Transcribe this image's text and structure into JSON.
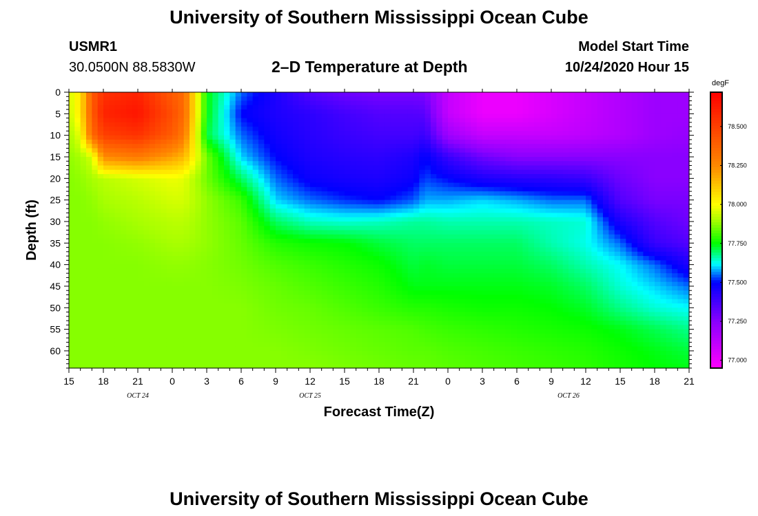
{
  "page": {
    "title_top": "University of Southern Mississippi Ocean Cube",
    "title_bottom": "University of Southern Mississippi Ocean Cube",
    "station_id": "USMR1",
    "station_coords": "30.0500N 88.5830W",
    "plot_title": "2–D Temperature at Depth",
    "model_start_label": "Model Start Time",
    "model_start_value": "10/24/2020 Hour 15"
  },
  "chart_data": {
    "type": "heatmap",
    "title": "2–D Temperature at Depth",
    "xlabel": "Forecast Time(Z)",
    "ylabel": "Depth (ft)",
    "x_tick_labels": [
      "15",
      "18",
      "21",
      "0",
      "3",
      "6",
      "9",
      "12",
      "15",
      "18",
      "21",
      "0",
      "3",
      "6",
      "9",
      "12",
      "15",
      "18",
      "21"
    ],
    "x_hours_since_start": [
      0,
      3,
      6,
      9,
      12,
      15,
      18,
      21,
      24,
      27,
      30,
      33,
      36,
      39,
      42,
      45,
      48,
      51,
      54
    ],
    "x_range_hours": [
      0,
      54
    ],
    "date_labels": [
      {
        "label": "OCT 24",
        "hour": 6
      },
      {
        "label": "OCT 25",
        "hour": 21
      },
      {
        "label": "OCT 26",
        "hour": 43.5
      }
    ],
    "y_ticks": [
      0,
      5,
      10,
      15,
      20,
      25,
      30,
      35,
      40,
      45,
      50,
      55,
      60
    ],
    "y_range": [
      0,
      64
    ],
    "y_inverted": true,
    "colorbar": {
      "unit": "degF",
      "range": [
        76.95,
        78.72
      ],
      "ticks": [
        77.0,
        77.25,
        77.5,
        77.75,
        78.0,
        78.25,
        78.5
      ],
      "tick_labels": [
        "77.000",
        "77.250",
        "77.500",
        "77.750",
        "78.000",
        "78.250",
        "78.500"
      ],
      "colors": [
        {
          "v": 76.95,
          "c": "#ff00ff"
        },
        {
          "v": 77.25,
          "c": "#8a00ff"
        },
        {
          "v": 77.5,
          "c": "#0000ff"
        },
        {
          "v": 77.62,
          "c": "#00ffff"
        },
        {
          "v": 77.75,
          "c": "#00ff00"
        },
        {
          "v": 77.9,
          "c": "#a8ff00"
        },
        {
          "v": 78.0,
          "c": "#ffff00"
        },
        {
          "v": 78.25,
          "c": "#ff8800"
        },
        {
          "v": 78.72,
          "c": "#ff0000"
        }
      ]
    },
    "grid_hours": [
      0,
      1,
      2,
      3,
      6,
      9,
      10,
      12,
      15,
      18,
      21,
      24,
      27,
      30,
      31,
      33,
      36,
      39,
      42,
      45,
      48,
      51,
      54
    ],
    "grid_depths": [
      0,
      5,
      10,
      15,
      20,
      25,
      30,
      35,
      40,
      45,
      50,
      55,
      60,
      64
    ],
    "grid_values": [
      [
        77.95,
        78.05,
        78.4,
        78.55,
        78.6,
        78.4,
        78.35,
        77.75,
        77.55,
        77.45,
        77.35,
        77.3,
        77.28,
        77.28,
        77.27,
        77.1,
        77.0,
        77.0,
        77.05,
        77.1,
        77.15,
        77.2,
        77.2
      ],
      [
        77.93,
        78.05,
        78.4,
        78.6,
        78.65,
        78.45,
        78.35,
        77.75,
        77.5,
        77.45,
        77.42,
        77.38,
        77.35,
        77.35,
        77.34,
        77.1,
        77.0,
        77.0,
        77.05,
        77.1,
        77.15,
        77.2,
        77.2
      ],
      [
        77.9,
        77.98,
        78.35,
        78.5,
        78.55,
        78.4,
        78.3,
        77.72,
        77.55,
        77.47,
        77.43,
        77.4,
        77.38,
        77.38,
        77.4,
        77.2,
        77.1,
        77.1,
        77.1,
        77.12,
        77.15,
        77.2,
        77.22
      ],
      [
        77.88,
        77.9,
        77.95,
        78.25,
        78.3,
        78.2,
        78.15,
        77.85,
        77.6,
        77.5,
        77.45,
        77.43,
        77.42,
        77.45,
        77.5,
        77.4,
        77.3,
        77.25,
        77.25,
        77.25,
        77.25,
        77.25,
        77.25
      ],
      [
        77.87,
        77.88,
        77.9,
        77.92,
        77.95,
        77.98,
        77.97,
        77.85,
        77.7,
        77.55,
        77.48,
        77.46,
        77.45,
        77.48,
        77.53,
        77.5,
        77.45,
        77.43,
        77.42,
        77.4,
        77.3,
        77.25,
        77.25
      ],
      [
        77.87,
        77.87,
        77.88,
        77.9,
        77.92,
        77.95,
        77.95,
        77.88,
        77.8,
        77.6,
        77.55,
        77.52,
        77.5,
        77.54,
        77.58,
        77.58,
        77.6,
        77.58,
        77.55,
        77.55,
        77.35,
        77.28,
        77.28
      ],
      [
        77.87,
        77.87,
        77.87,
        77.88,
        77.9,
        77.92,
        77.92,
        77.88,
        77.83,
        77.7,
        77.65,
        77.64,
        77.65,
        77.67,
        77.67,
        77.66,
        77.66,
        77.66,
        77.65,
        77.64,
        77.45,
        77.35,
        77.3
      ],
      [
        77.87,
        77.87,
        77.87,
        77.87,
        77.88,
        77.9,
        77.9,
        77.88,
        77.84,
        77.78,
        77.76,
        77.75,
        77.72,
        77.7,
        77.7,
        77.7,
        77.7,
        77.7,
        77.66,
        77.63,
        77.55,
        77.4,
        77.35
      ],
      [
        77.87,
        77.87,
        77.87,
        77.87,
        77.87,
        77.88,
        77.88,
        77.87,
        77.85,
        77.82,
        77.8,
        77.78,
        77.76,
        77.72,
        77.73,
        77.72,
        77.72,
        77.72,
        77.7,
        77.66,
        77.62,
        77.55,
        77.45
      ],
      [
        77.87,
        77.87,
        77.87,
        77.87,
        77.87,
        77.87,
        77.87,
        77.87,
        77.86,
        77.84,
        77.82,
        77.8,
        77.78,
        77.74,
        77.74,
        77.74,
        77.74,
        77.74,
        77.73,
        77.7,
        77.64,
        77.6,
        77.55
      ],
      [
        77.87,
        77.87,
        77.87,
        77.87,
        77.87,
        77.87,
        77.87,
        77.87,
        77.87,
        77.85,
        77.84,
        77.82,
        77.8,
        77.78,
        77.78,
        77.77,
        77.76,
        77.76,
        77.75,
        77.73,
        77.68,
        77.64,
        77.62
      ],
      [
        77.87,
        77.87,
        77.87,
        77.87,
        77.87,
        77.87,
        77.87,
        77.87,
        77.87,
        77.86,
        77.85,
        77.84,
        77.83,
        77.82,
        77.81,
        77.8,
        77.79,
        77.78,
        77.77,
        77.76,
        77.74,
        77.71,
        77.68
      ],
      [
        77.87,
        77.87,
        77.87,
        77.87,
        77.87,
        77.87,
        77.87,
        77.87,
        77.87,
        77.87,
        77.86,
        77.85,
        77.84,
        77.83,
        77.83,
        77.82,
        77.81,
        77.8,
        77.79,
        77.78,
        77.76,
        77.74,
        77.72
      ],
      [
        77.87,
        77.87,
        77.87,
        77.87,
        77.87,
        77.87,
        77.87,
        77.87,
        77.87,
        77.87,
        77.87,
        77.86,
        77.85,
        77.84,
        77.84,
        77.83,
        77.82,
        77.81,
        77.8,
        77.79,
        77.77,
        77.75,
        77.74
      ]
    ]
  }
}
